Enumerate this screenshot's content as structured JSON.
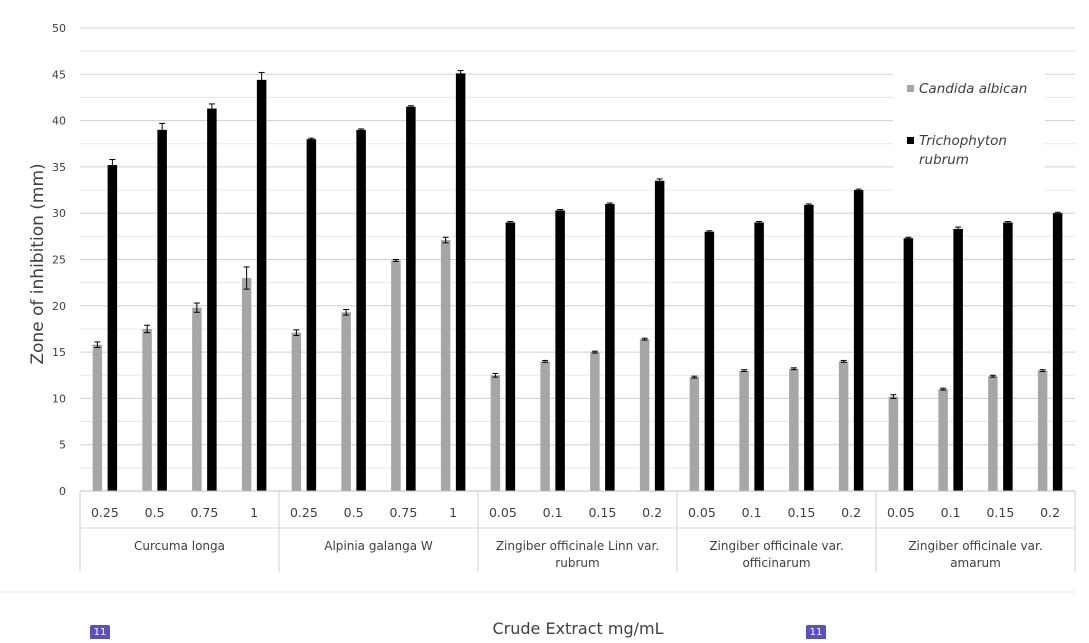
{
  "chart_data": {
    "type": "bar",
    "xlabel": "Crude Extract mg/mL",
    "ylabel": "Zone of inhibition (mm)",
    "ylim": [
      0,
      50
    ],
    "yticks": [
      "0",
      "5",
      "10",
      "15",
      "20",
      "25",
      "30",
      "35",
      "40",
      "45",
      "50"
    ],
    "grid": true,
    "legend_position": "top-right",
    "groups": [
      {
        "name": "Curcuma longa",
        "lines": [
          "Curcuma longa"
        ]
      },
      {
        "name": "Alpinia galanga W",
        "lines": [
          "Alpinia galanga W"
        ]
      },
      {
        "name": "Zingiber officinale Linn var. rubrum",
        "lines": [
          "Zingiber officinale Linn var.",
          "rubrum"
        ]
      },
      {
        "name": "Zingiber officinale var. officinarum",
        "lines": [
          "Zingiber officinale var.",
          "officinarum"
        ]
      },
      {
        "name": "Zingiber officinale var. amarum",
        "lines": [
          "Zingiber officinale var.",
          "amarum"
        ]
      }
    ],
    "categories": [
      "0.25",
      "0.5",
      "0.75",
      "1",
      "0.25",
      "0.5",
      "0.75",
      "1",
      "0.05",
      "0.1",
      "0.15",
      "0.2",
      "0.05",
      "0.1",
      "0.15",
      "0.2",
      "0.05",
      "0.1",
      "0.15",
      "0.2"
    ],
    "series": [
      {
        "name": "Candida albican",
        "color": "#a6a6a6",
        "values": [
          15.8,
          17.5,
          19.8,
          23.0,
          17.1,
          19.3,
          24.9,
          27.1,
          12.5,
          14.0,
          15.0,
          16.4,
          12.3,
          13.0,
          13.2,
          14.0,
          10.2,
          11.0,
          12.4,
          13.0
        ],
        "errors": [
          0.3,
          0.4,
          0.5,
          1.2,
          0.3,
          0.3,
          0.1,
          0.3,
          0.2,
          0.1,
          0.1,
          0.1,
          0.1,
          0.1,
          0.1,
          0.1,
          0.2,
          0.1,
          0.1,
          0.1
        ]
      },
      {
        "name": "Trichophyton rubrum",
        "legend_lines": [
          "Trichophyton",
          "rubrum"
        ],
        "color": "#000000",
        "values": [
          35.2,
          39.0,
          41.3,
          44.4,
          38.0,
          39.0,
          41.5,
          45.1,
          29.0,
          30.3,
          31.0,
          33.5,
          28.0,
          29.0,
          30.9,
          32.5,
          27.3,
          28.3,
          29.0,
          30.0
        ],
        "errors": [
          0.6,
          0.7,
          0.5,
          0.8,
          0.1,
          0.1,
          0.1,
          0.3,
          0.1,
          0.1,
          0.1,
          0.2,
          0.1,
          0.1,
          0.1,
          0.1,
          0.1,
          0.2,
          0.1,
          0.1
        ]
      }
    ]
  },
  "page_badges": [
    "11",
    "11"
  ]
}
